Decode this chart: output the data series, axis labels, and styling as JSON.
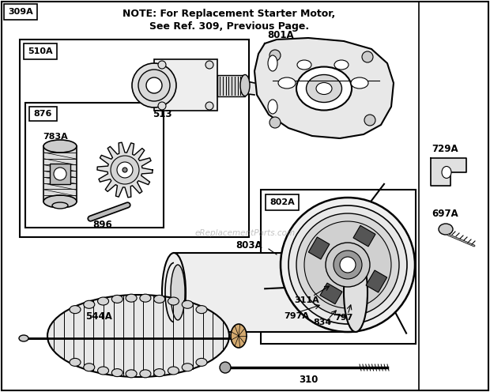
{
  "bg_color": "#ffffff",
  "main_border_color": "#000000",
  "title_line1": "NOTE: For Replacement Starter Motor,",
  "title_line2": "See Ref. 309, Previous Page.",
  "watermark": "eReplacementParts.com",
  "fig_w": 6.2,
  "fig_h": 4.96,
  "dpi": 100
}
